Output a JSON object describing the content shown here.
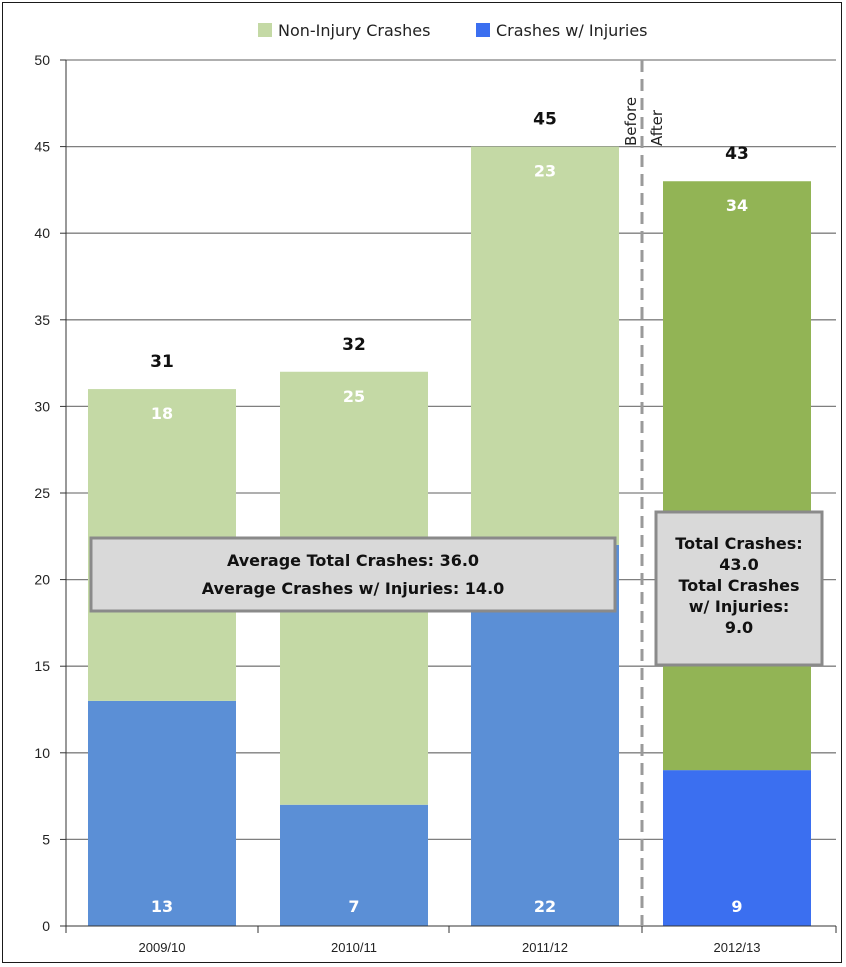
{
  "chart_data": {
    "type": "bar",
    "stacked": true,
    "categories": [
      "2009/10",
      "2010/11",
      "2011/12",
      "2012/13"
    ],
    "series": [
      {
        "name": "Crashes w/ Injuries",
        "values": [
          13,
          7,
          22,
          9
        ],
        "value_labels": [
          "13",
          "7",
          "22",
          "9"
        ],
        "colors": [
          "#5b8fd6",
          "#5b8fd6",
          "#5b8fd6",
          "#3b6ff0"
        ]
      },
      {
        "name": "Non-Injury Crashes",
        "values": [
          18,
          25,
          23,
          34
        ],
        "value_labels": [
          "18",
          "25",
          "23",
          "34"
        ],
        "colors": [
          "#c4d9a5",
          "#c4d9a5",
          "#c4d9a5",
          "#92b455"
        ]
      }
    ],
    "totals": [
      31,
      32,
      45,
      43
    ],
    "total_labels": [
      "31",
      "32",
      "45",
      "43"
    ],
    "y_ticks": [
      "0",
      "5",
      "10",
      "15",
      "20",
      "25",
      "30",
      "35",
      "40",
      "45",
      "50"
    ],
    "ylim": [
      0,
      50
    ],
    "grid": true,
    "legend": {
      "position": "top",
      "items": [
        {
          "label": "Non-Injury Crashes",
          "color": "#c4d9a5"
        },
        {
          "label": "Crashes w/ Injuries",
          "color": "#3b6ff0"
        }
      ]
    },
    "divider": {
      "between": [
        "2011/12",
        "2012/13"
      ],
      "before_label": "Before",
      "after_label": "After"
    },
    "annotations": {
      "before_summary": [
        "Average Total Crashes: 36.0",
        "Average Crashes w/ Injuries: 14.0"
      ],
      "after_summary": [
        "Total Crashes:",
        "43.0",
        "Total Crashes",
        "w/ Injuries:",
        "9.0"
      ]
    }
  }
}
